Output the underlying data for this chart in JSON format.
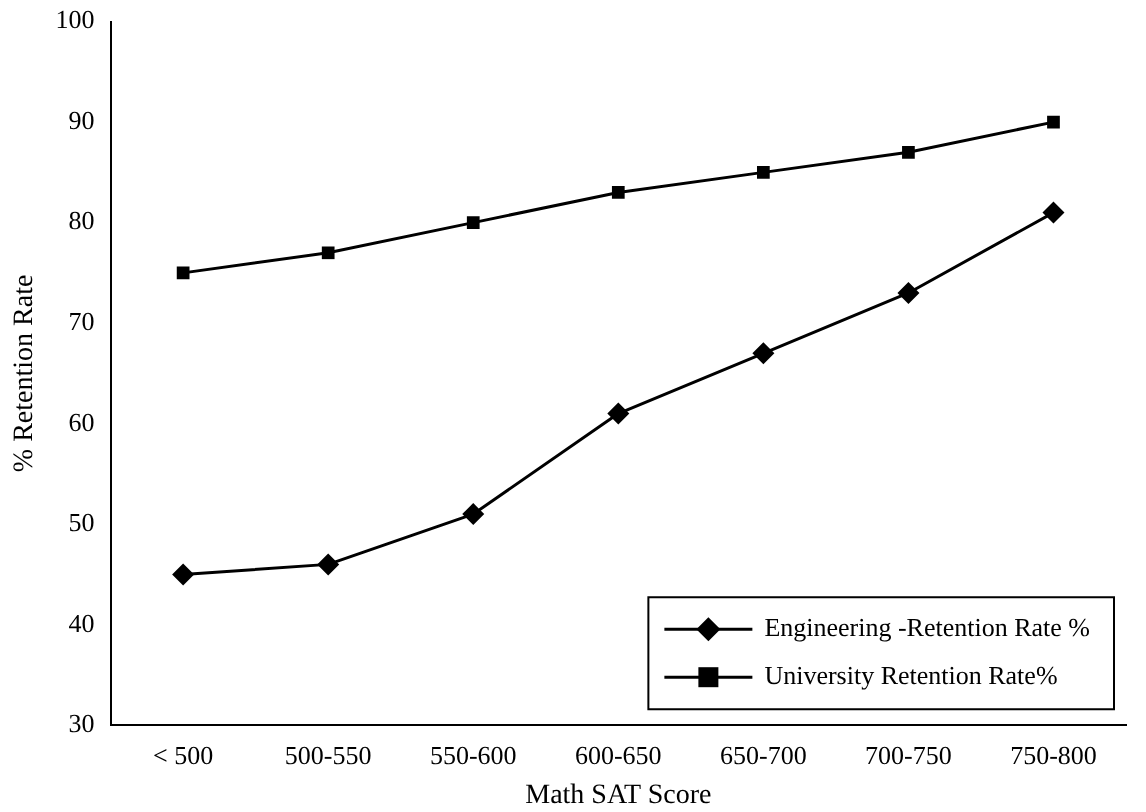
{
  "chart_data": {
    "type": "line",
    "xlabel": "Math SAT Score",
    "ylabel": "% Retention Rate",
    "categories": [
      "< 500",
      "500-550",
      "550-600",
      "600-650",
      "650-700",
      "700-750",
      "750-800"
    ],
    "series": [
      {
        "name": "Engineering -Retention Rate %",
        "color": "#000000",
        "marker": "diamond",
        "values": [
          45,
          46,
          51,
          61,
          67,
          73,
          81
        ]
      },
      {
        "name": "University Retention Rate%",
        "color": "#000000",
        "marker": "square",
        "values": [
          75,
          77,
          80,
          83,
          85,
          87,
          90
        ]
      }
    ],
    "ylim": [
      30,
      100
    ],
    "yticks": [
      30,
      40,
      50,
      60,
      70,
      80,
      90,
      100
    ],
    "grid": false,
    "legend": "bottom right",
    "line_style": "solid"
  }
}
